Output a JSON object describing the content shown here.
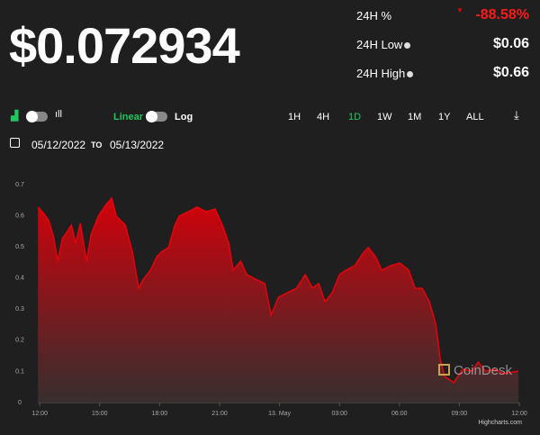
{
  "header": {
    "price": "$0.072934",
    "stats": [
      {
        "label": "24H %",
        "value": "-88.58%"
      },
      {
        "label": "24H Low",
        "value": "$0.06"
      },
      {
        "label": "24H High",
        "value": "$0.66"
      }
    ]
  },
  "controls": {
    "scale_linear": "Linear",
    "scale_log": "Log",
    "ranges": [
      "1H",
      "4H",
      "1D",
      "1W",
      "1M",
      "1Y",
      "ALL"
    ],
    "selected_range": 2,
    "date_from": "05/12/2022",
    "date_sep": "TO",
    "date_to": "05/13/2022"
  },
  "chart_data": {
    "type": "area",
    "color": "#e8000b",
    "watermark": "CoinDesk",
    "credit": "Highcharts.com",
    "grid": false,
    "xlim": [
      -0.1,
      24.0
    ],
    "xticks": [
      {
        "value": 0,
        "label": "12:00"
      },
      {
        "value": 3,
        "label": "15:00"
      },
      {
        "value": 6,
        "label": "18:00"
      },
      {
        "value": 9,
        "label": "21:00"
      },
      {
        "value": 12,
        "label": "13. May"
      },
      {
        "value": 15,
        "label": "03:00"
      },
      {
        "value": 18,
        "label": "06:00"
      },
      {
        "value": 21,
        "label": "09:00"
      },
      {
        "value": 24,
        "label": "12:00"
      }
    ],
    "ylim": [
      0,
      0.7
    ],
    "yticks": [
      0,
      0.1,
      0.2,
      0.3,
      0.4,
      0.5,
      0.6,
      0.7
    ],
    "x": [
      -0.09,
      0.23,
      0.45,
      0.68,
      0.9,
      1.13,
      1.35,
      1.58,
      1.8,
      2.03,
      2.34,
      2.57,
      2.93,
      3.29,
      3.6,
      3.83,
      4.28,
      4.64,
      4.95,
      5.18,
      5.54,
      5.86,
      6.08,
      6.44,
      6.76,
      6.98,
      7.43,
      7.88,
      8.33,
      8.78,
      9.14,
      9.46,
      9.68,
      10.05,
      10.36,
      10.81,
      11.26,
      11.58,
      11.94,
      12.39,
      12.84,
      13.29,
      13.65,
      13.96,
      14.28,
      14.64,
      15,
      15.32,
      15.77,
      16.22,
      16.44,
      16.8,
      17.12,
      17.57,
      18.02,
      18.47,
      18.78,
      19.14,
      19.5,
      19.82,
      20.05,
      20.27,
      20.72,
      21.17,
      21.62,
      21.94,
      22.3,
      22.75,
      23.2,
      23.65,
      23.96
    ],
    "values": [
      0.628,
      0.605,
      0.584,
      0.535,
      0.454,
      0.527,
      0.547,
      0.57,
      0.512,
      0.576,
      0.454,
      0.541,
      0.599,
      0.634,
      0.657,
      0.599,
      0.57,
      0.483,
      0.367,
      0.396,
      0.425,
      0.469,
      0.483,
      0.498,
      0.57,
      0.599,
      0.613,
      0.628,
      0.613,
      0.622,
      0.57,
      0.512,
      0.425,
      0.454,
      0.411,
      0.396,
      0.382,
      0.281,
      0.338,
      0.353,
      0.367,
      0.411,
      0.367,
      0.382,
      0.324,
      0.353,
      0.411,
      0.425,
      0.44,
      0.483,
      0.498,
      0.469,
      0.425,
      0.44,
      0.448,
      0.425,
      0.367,
      0.367,
      0.324,
      0.252,
      0.136,
      0.084,
      0.064,
      0.107,
      0.101,
      0.13,
      0.101,
      0.107,
      0.093,
      0.098,
      0.101
    ]
  }
}
